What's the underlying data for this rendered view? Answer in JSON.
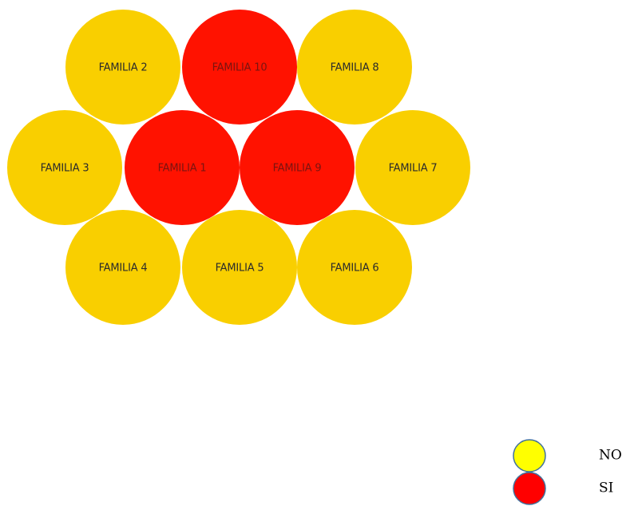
{
  "nodes": [
    {
      "label": "FAMILIA 2",
      "color": "#f9cf00"
    },
    {
      "label": "FAMILIA 10",
      "color": "#ff1200"
    },
    {
      "label": "FAMILIA 8",
      "color": "#f9cf00"
    },
    {
      "label": "FAMILIA 3",
      "color": "#f9cf00"
    },
    {
      "label": "FAMILIA 1",
      "color": "#ff1200"
    },
    {
      "label": "FAMILIA 9",
      "color": "#ff1200"
    },
    {
      "label": "FAMILIA 7",
      "color": "#f9cf00"
    },
    {
      "label": "FAMILIA 4",
      "color": "#f9cf00"
    },
    {
      "label": "FAMILIA 5",
      "color": "#f9cf00"
    },
    {
      "label": "FAMILIA 6",
      "color": "#f9cf00"
    }
  ],
  "legend": [
    {
      "label": "NO",
      "color": "#ffff00"
    },
    {
      "label": "SI",
      "color": "#ff0000"
    }
  ]
}
